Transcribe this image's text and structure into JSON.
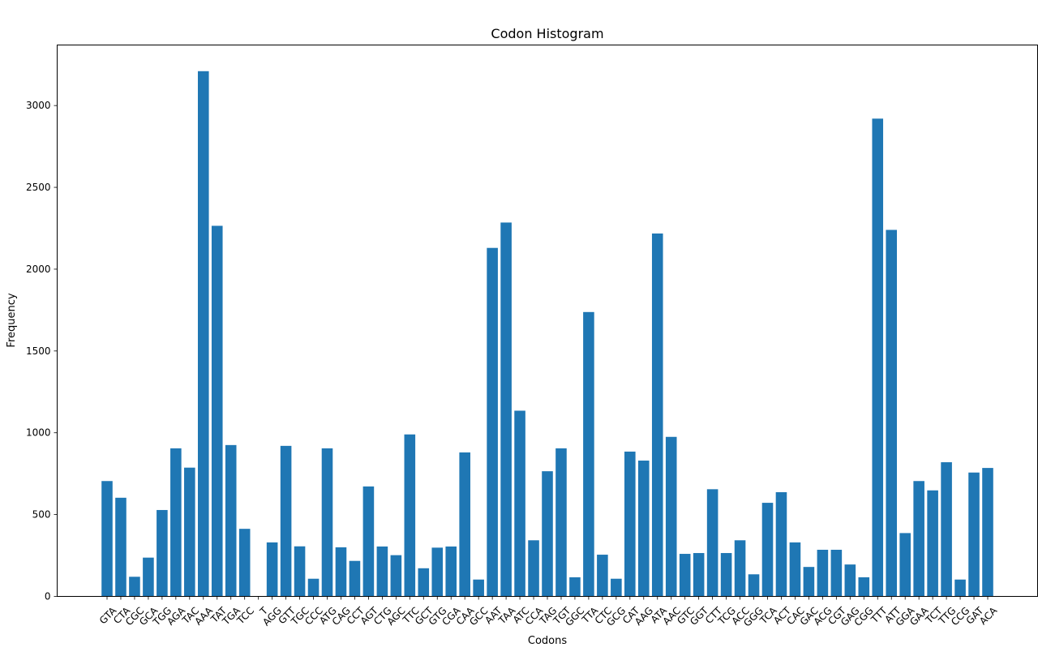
{
  "chart_data": {
    "type": "bar",
    "title": "Codon Histogram",
    "xlabel": "Codons",
    "ylabel": "Frequency",
    "ylim": [
      0,
      3370
    ],
    "yticks": [
      0,
      500,
      1000,
      1500,
      2000,
      2500,
      3000
    ],
    "grid": false,
    "bar_color": "#1f77b4",
    "categories": [
      "GTA",
      "CTA",
      "CGC",
      "GCA",
      "TGG",
      "AGA",
      "TAC",
      "AAA",
      "TAT",
      "TGA",
      "TCC",
      "T",
      "AGG",
      "GTT",
      "TGC",
      "CCC",
      "ATG",
      "CAG",
      "CCT",
      "AGT",
      "CTG",
      "AGC",
      "TTC",
      "GCT",
      "GTG",
      "CGA",
      "CAA",
      "GCC",
      "AAT",
      "TAA",
      "ATC",
      "CCA",
      "TAG",
      "TGT",
      "GGC",
      "TTA",
      "CTC",
      "GCG",
      "CAT",
      "AAG",
      "ATA",
      "AAC",
      "GTC",
      "GGT",
      "CTT",
      "TCG",
      "ACC",
      "GGG",
      "TCA",
      "ACT",
      "CAC",
      "GAC",
      "ACG",
      "CGT",
      "GAG",
      "CGG",
      "TTT",
      "ATT",
      "GGA",
      "GAA",
      "TCT",
      "TTG",
      "CCG",
      "GAT",
      "ACA"
    ],
    "values": [
      705,
      603,
      120,
      237,
      528,
      905,
      787,
      3210,
      2265,
      925,
      413,
      0,
      330,
      920,
      306,
      108,
      905,
      300,
      217,
      672,
      305,
      252,
      990,
      172,
      298,
      305,
      880,
      103,
      2130,
      2285,
      1135,
      343,
      765,
      905,
      117,
      1738,
      255,
      108,
      885,
      830,
      2218,
      975,
      260,
      265,
      655,
      265,
      343,
      135,
      572,
      637,
      330,
      180,
      285,
      285,
      195,
      117,
      2920,
      2240,
      387,
      705,
      648,
      820,
      103,
      757,
      785
    ]
  }
}
